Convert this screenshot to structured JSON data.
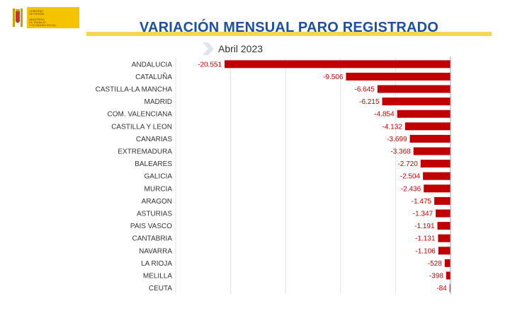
{
  "header": {
    "logo_lines": [
      "GOBIERNO",
      "DE ESPAÑA"
    ],
    "ministry_lines": [
      "MINISTERIO",
      "DE TRABAJO",
      "Y ECONOMÍA SOCIAL"
    ],
    "logo_color": "#f4c400"
  },
  "chart_data": {
    "type": "bar",
    "orientation": "horizontal",
    "title": "VARIACIÓN MENSUAL PARO REGISTRADO",
    "subtitle": "Abril 2023",
    "categories": [
      "ANDALUCIA",
      "CATALUÑA",
      "CASTILLA-LA MANCHA",
      "MADRID",
      "COM. VALENCIANA",
      "CASTILLA Y LEON",
      "CANARIAS",
      "EXTREMADURA",
      "BALEARES",
      "GALICIA",
      "MURCIA",
      "ARAGON",
      "ASTURIAS",
      "PAIS VASCO",
      "CANTABRIA",
      "NAVARRA",
      "LA RIOJA",
      "MELILLA",
      "CEUTA"
    ],
    "values": [
      -20551,
      -9506,
      -6645,
      -6215,
      -4854,
      -4132,
      -3699,
      -3368,
      -2720,
      -2504,
      -2436,
      -1475,
      -1347,
      -1191,
      -1131,
      -1106,
      -528,
      -398,
      -84
    ],
    "value_labels": [
      "-20.551",
      "-9.506",
      "-6.645",
      "-6.215",
      "-4.854",
      "-4.132",
      "-3.699",
      "-3.368",
      "-2.720",
      "-2.504",
      "-2.436",
      "-1.475",
      "-1.347",
      "-1.191",
      "-1.131",
      "-1.106",
      "-528",
      "-398",
      "-84"
    ],
    "xlim": [
      -25000,
      0
    ],
    "grid": true,
    "bar_color": "#c00000",
    "label_color": "#cc0000"
  }
}
